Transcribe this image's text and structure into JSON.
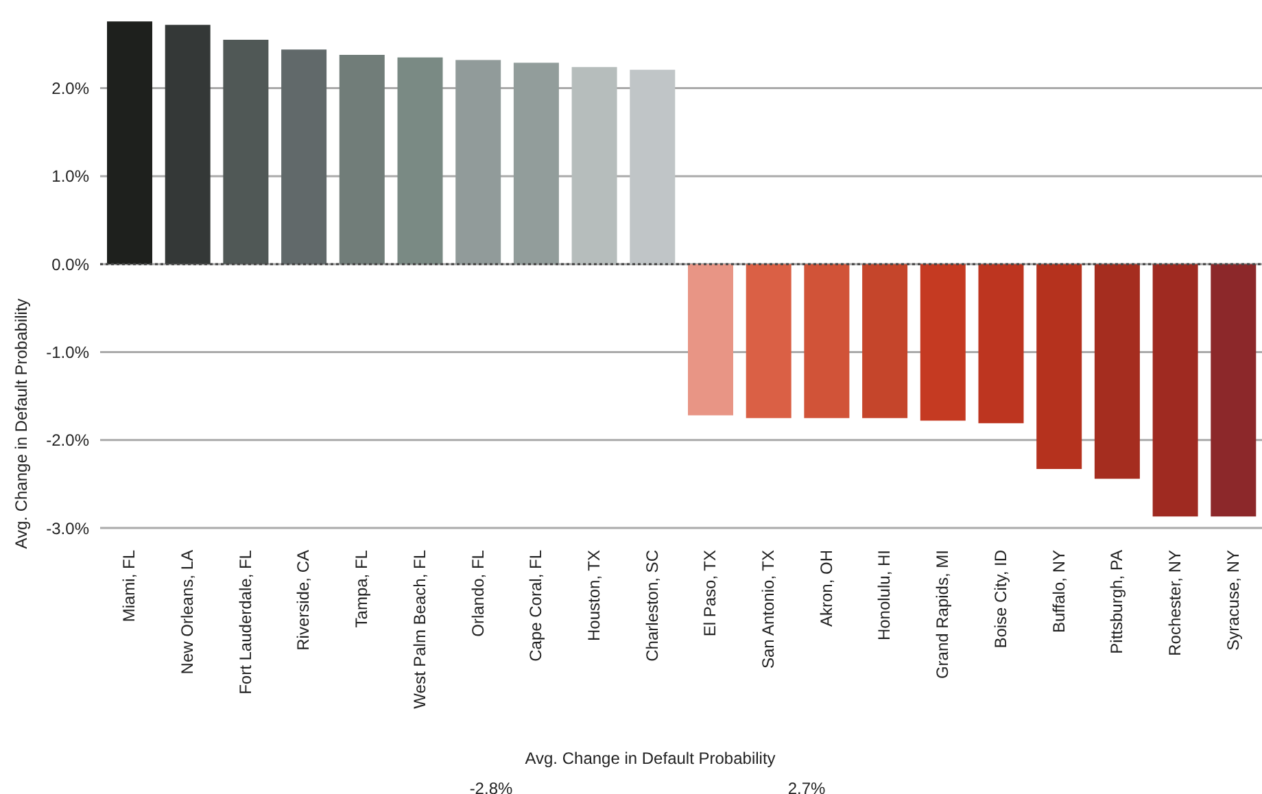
{
  "chart_data": {
    "type": "bar",
    "ylabel": "Avg. Change in Default Probability",
    "categories": [
      "Miami, FL",
      "New Orleans, LA",
      "Fort Lauderdale, FL",
      "Riverside, CA",
      "Tampa, FL",
      "West Palm Beach, FL",
      "Orlando, FL",
      "Cape Coral, FL",
      "Houston, TX",
      "Charleston, SC",
      "El Paso, TX",
      "San Antonio, TX",
      "Akron, OH",
      "Honolulu, HI",
      "Grand Rapids, MI",
      "Boise City, ID",
      "Buffalo, NY",
      "Pittsburgh, PA",
      "Rochester, NY",
      "Syracuse, NY"
    ],
    "values": [
      2.76,
      2.72,
      2.55,
      2.44,
      2.38,
      2.35,
      2.32,
      2.29,
      2.24,
      2.21,
      -1.72,
      -1.75,
      -1.75,
      -1.75,
      -1.78,
      -1.81,
      -2.33,
      -2.44,
      -2.87,
      -2.87
    ],
    "colors": [
      "#1e201d",
      "#343837",
      "#505856",
      "#61696a",
      "#717d79",
      "#7a8a84",
      "#919b9a",
      "#929d9b",
      "#b6bdbc",
      "#c0c5c7",
      "#e89585",
      "#da6045",
      "#d15338",
      "#c5452b",
      "#c53a22",
      "#bd3520",
      "#b5321e",
      "#a52d1f",
      "#9f2a21",
      "#8c282a"
    ],
    "ylim": [
      -3.0,
      2.8
    ],
    "yticks": [
      {
        "value": -3,
        "label": "-3.0%"
      },
      {
        "value": -2,
        "label": "-2.0%"
      },
      {
        "value": -1,
        "label": "-1.0%"
      },
      {
        "value": 0,
        "label": "0.0%"
      },
      {
        "value": 1,
        "label": "1.0%"
      },
      {
        "value": 2,
        "label": "2.0%"
      }
    ],
    "grid": "y",
    "ref_lines": [
      {
        "axis": "y",
        "value": 0,
        "label": null,
        "color": "#444444",
        "line_style": "dotted"
      }
    ],
    "annotations": [
      "Avg. Change in Default Probability",
      "-2.8%",
      "2.7%"
    ]
  }
}
